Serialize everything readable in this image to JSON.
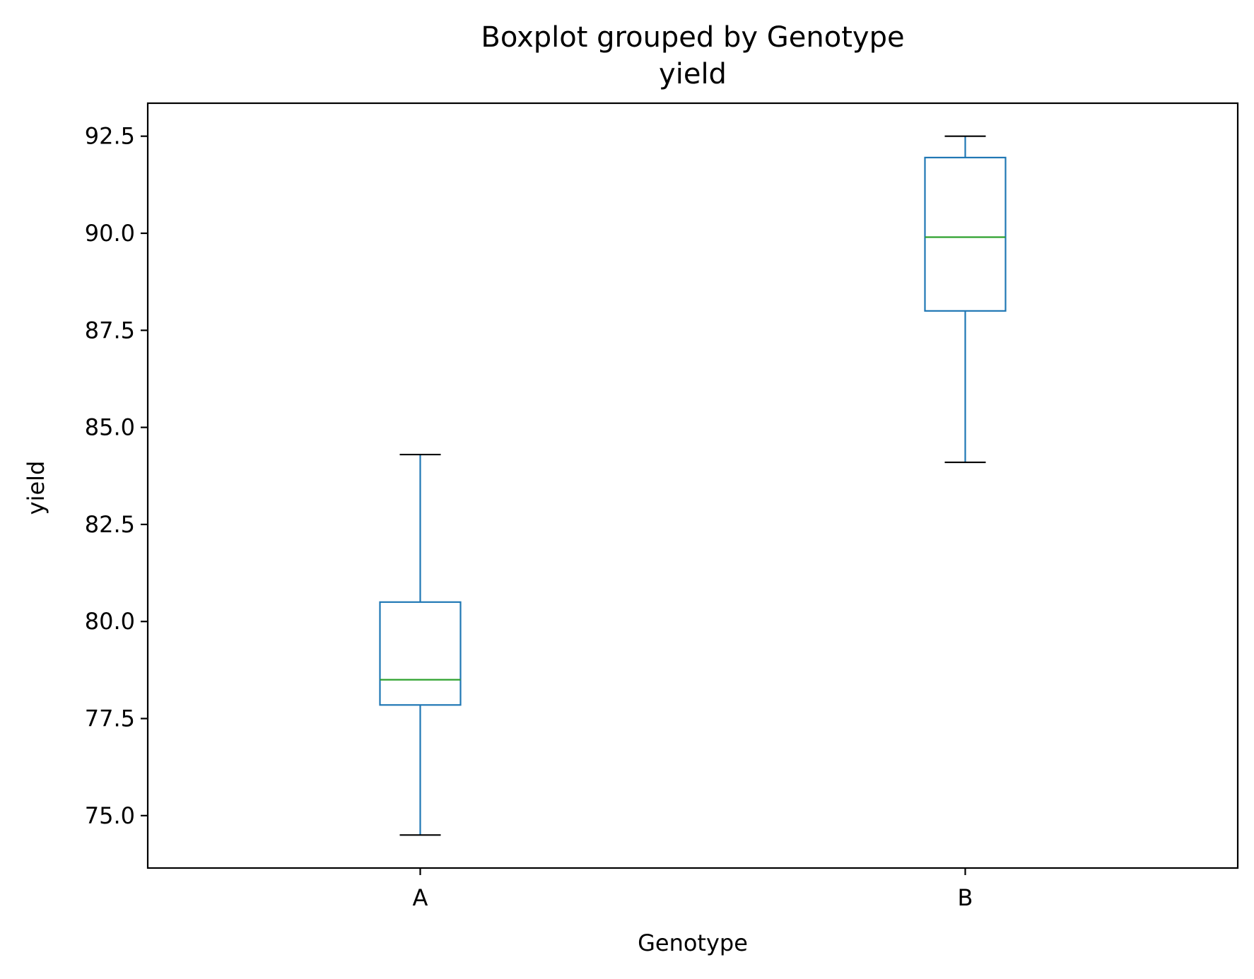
{
  "chart_data": {
    "type": "boxplot",
    "suptitle": "Boxplot grouped by Genotype",
    "title": "yield",
    "xlabel": "Genotype",
    "ylabel": "yield",
    "categories": [
      "A",
      "B"
    ],
    "ylim": [
      73.65,
      93.35
    ],
    "yticks": [
      75.0,
      77.5,
      80.0,
      82.5,
      85.0,
      87.5,
      90.0,
      92.5
    ],
    "ytick_labels": [
      "75.0",
      "77.5",
      "80.0",
      "82.5",
      "85.0",
      "87.5",
      "90.0",
      "92.5"
    ],
    "boxes": [
      {
        "category": "A",
        "whisker_low": 74.5,
        "q1": 77.85,
        "median": 78.5,
        "q3": 80.5,
        "whisker_high": 84.3
      },
      {
        "category": "B",
        "whisker_low": 84.1,
        "q1": 88.0,
        "median": 89.9,
        "q3": 91.95,
        "whisker_high": 92.5
      }
    ],
    "grid": false,
    "colors": {
      "box": "#1f77b4",
      "median": "#2ca02c",
      "cap": "#000000",
      "axes": "#000000"
    }
  }
}
